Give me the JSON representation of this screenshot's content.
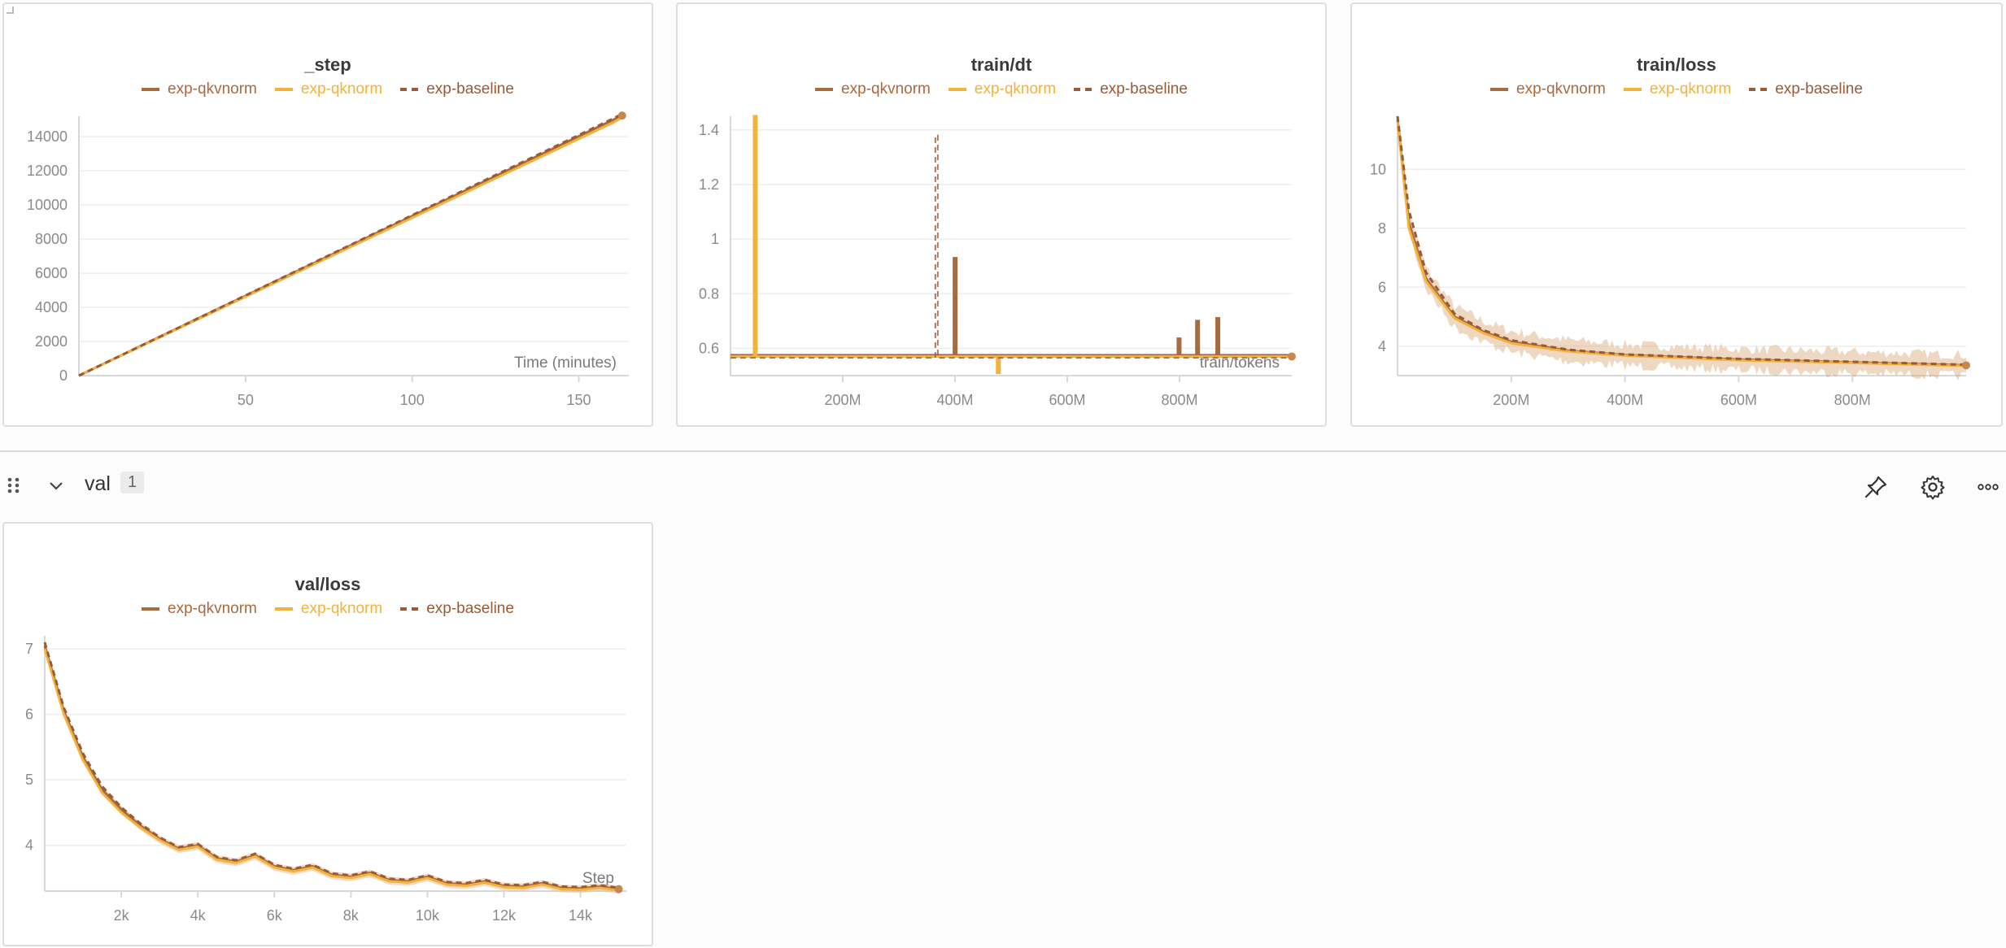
{
  "legend": [
    {
      "name": "exp-qkvnorm",
      "color": "#a86a3f",
      "dash": false
    },
    {
      "name": "exp-qknorm",
      "color": "#f2b23c",
      "dash": false
    },
    {
      "name": "exp-baseline",
      "color": "#9a5a34",
      "dash": true
    }
  ],
  "section": {
    "title": "val",
    "count": "1"
  },
  "icons": [
    "drag-handle-icon",
    "chevron-down-icon",
    "pin-icon",
    "gear-icon",
    "more-icon"
  ],
  "chart_data": [
    {
      "type": "line",
      "title": "_step",
      "xlabel": "Time (minutes)",
      "ylabel": "",
      "xlim": [
        0,
        165
      ],
      "ylim": [
        0,
        15200
      ],
      "xticks": [
        50,
        100,
        150
      ],
      "xtick_labels": [
        "50",
        "100",
        "150"
      ],
      "yticks": [
        0,
        2000,
        4000,
        6000,
        8000,
        10000,
        12000,
        14000
      ],
      "ytick_labels": [
        "0",
        "2000",
        "4000",
        "6000",
        "8000",
        "10000",
        "12000",
        "14000"
      ],
      "grid": true,
      "legend_position": "top-center",
      "series": [
        {
          "name": "exp-qkvnorm",
          "x": [
            0,
            20,
            40,
            60,
            80,
            100,
            120,
            140,
            160,
            163
          ],
          "y": [
            0,
            1870,
            3740,
            5610,
            7480,
            9350,
            11220,
            13090,
            14960,
            15240
          ]
        },
        {
          "name": "exp-qknorm",
          "x": [
            0,
            20,
            40,
            60,
            80,
            100,
            120,
            140,
            160,
            164
          ],
          "y": [
            0,
            1850,
            3700,
            5550,
            7400,
            9250,
            11100,
            12950,
            14800,
            15240
          ]
        },
        {
          "name": "exp-baseline",
          "x": [
            0,
            20,
            40,
            60,
            80,
            100,
            120,
            140,
            160,
            162
          ],
          "y": [
            0,
            1880,
            3760,
            5640,
            7520,
            9400,
            11280,
            13160,
            15040,
            15240
          ]
        }
      ]
    },
    {
      "type": "line",
      "title": "train/dt",
      "xlabel": "train/tokens",
      "ylabel": "",
      "xlim": [
        0,
        1000000000
      ],
      "ylim": [
        0.5,
        1.45
      ],
      "xticks": [
        200000000,
        400000000,
        600000000,
        800000000
      ],
      "xtick_labels": [
        "200M",
        "400M",
        "600M",
        "800M"
      ],
      "yticks": [
        0.6,
        0.8,
        1.0,
        1.2,
        1.4
      ],
      "ytick_labels": [
        "0.6",
        "0.8",
        "1",
        "1.2",
        "1.4"
      ],
      "grid": true,
      "legend_position": "top-center",
      "series": [
        {
          "name": "exp-qkvnorm",
          "baseline": 0.575,
          "spikes": [
            [
              42000000,
              1.15
            ],
            [
              398000000,
              0.93
            ],
            [
              797000000,
              0.635
            ],
            [
              830000000,
              0.7
            ],
            [
              866000000,
              0.71
            ]
          ]
        },
        {
          "name": "exp-qknorm",
          "baseline": 0.57,
          "spikes": [
            [
              42000000,
              1.45
            ],
            [
              475000000,
              0.51
            ]
          ]
        },
        {
          "name": "exp-baseline",
          "baseline": 0.565,
          "spikes": [
            [
              365000000,
              1.38
            ]
          ]
        }
      ]
    },
    {
      "type": "line",
      "title": "train/loss",
      "xlabel": "",
      "ylabel": "",
      "xlim": [
        0,
        1000000000
      ],
      "ylim": [
        3,
        11.8
      ],
      "xticks": [
        200000000,
        400000000,
        600000000,
        800000000
      ],
      "xtick_labels": [
        "200M",
        "400M",
        "600M",
        "800M"
      ],
      "yticks": [
        4,
        6,
        8,
        10
      ],
      "ytick_labels": [
        "4",
        "6",
        "8",
        "10"
      ],
      "grid": true,
      "legend_position": "top-center",
      "series": [
        {
          "name": "exp-qkvnorm",
          "x": [
            0,
            20000000,
            50000000,
            100000000,
            150000000,
            200000000,
            300000000,
            400000000,
            600000000,
            800000000,
            1000000000
          ],
          "y": [
            11.7,
            8.2,
            6.3,
            5.0,
            4.5,
            4.15,
            3.85,
            3.7,
            3.55,
            3.45,
            3.35
          ]
        },
        {
          "name": "exp-qknorm",
          "x": [
            0,
            20000000,
            50000000,
            100000000,
            150000000,
            200000000,
            300000000,
            400000000,
            600000000,
            800000000,
            1000000000
          ],
          "y": [
            11.6,
            8.0,
            6.2,
            4.95,
            4.45,
            4.1,
            3.82,
            3.68,
            3.52,
            3.43,
            3.33
          ]
        },
        {
          "name": "exp-baseline",
          "x": [
            0,
            20000000,
            50000000,
            100000000,
            150000000,
            200000000,
            300000000,
            400000000,
            600000000,
            800000000,
            1000000000
          ],
          "y": [
            11.8,
            8.6,
            6.5,
            5.1,
            4.55,
            4.2,
            3.88,
            3.72,
            3.57,
            3.47,
            3.37
          ]
        }
      ]
    },
    {
      "type": "line",
      "title": "val/loss",
      "xlabel": "Step",
      "ylabel": "",
      "xlim": [
        0,
        15200
      ],
      "ylim": [
        3.3,
        7.2
      ],
      "xticks": [
        2000,
        4000,
        6000,
        8000,
        10000,
        12000,
        14000
      ],
      "xtick_labels": [
        "2k",
        "4k",
        "6k",
        "8k",
        "10k",
        "12k",
        "14k"
      ],
      "yticks": [
        4,
        5,
        6,
        7
      ],
      "ytick_labels": [
        "4",
        "5",
        "6",
        "7"
      ],
      "grid": true,
      "legend_position": "top-center",
      "series": [
        {
          "name": "exp-qkvnorm",
          "x": [
            0,
            500,
            1000,
            1500,
            2000,
            2500,
            3000,
            3500,
            4000,
            4500,
            5000,
            5500,
            6000,
            6500,
            7000,
            7500,
            8000,
            8500,
            9000,
            9500,
            10000,
            10500,
            11000,
            11500,
            12000,
            12500,
            13000,
            13500,
            14000,
            14500,
            15000
          ],
          "y": [
            7.05,
            6.05,
            5.35,
            4.85,
            4.55,
            4.3,
            4.1,
            3.95,
            4.0,
            3.8,
            3.75,
            3.85,
            3.68,
            3.62,
            3.68,
            3.55,
            3.52,
            3.58,
            3.47,
            3.45,
            3.52,
            3.42,
            3.4,
            3.45,
            3.38,
            3.37,
            3.42,
            3.35,
            3.34,
            3.37,
            3.33
          ]
        },
        {
          "name": "exp-qknorm",
          "x": [
            0,
            500,
            1000,
            1500,
            2000,
            2500,
            3000,
            3500,
            4000,
            4500,
            5000,
            5500,
            6000,
            6500,
            7000,
            7500,
            8000,
            8500,
            9000,
            9500,
            10000,
            10500,
            11000,
            11500,
            12000,
            12500,
            13000,
            13500,
            14000,
            14500,
            15000
          ],
          "y": [
            7.0,
            6.0,
            5.3,
            4.8,
            4.5,
            4.27,
            4.08,
            3.93,
            3.98,
            3.78,
            3.73,
            3.83,
            3.66,
            3.6,
            3.66,
            3.53,
            3.5,
            3.56,
            3.45,
            3.43,
            3.5,
            3.4,
            3.38,
            3.43,
            3.36,
            3.35,
            3.4,
            3.33,
            3.32,
            3.35,
            3.31
          ]
        },
        {
          "name": "exp-baseline",
          "x": [
            0,
            500,
            1000,
            1500,
            2000,
            2500,
            3000,
            3500,
            4000,
            4500,
            5000,
            5500,
            6000,
            6500,
            7000,
            7500,
            8000,
            8500,
            9000,
            9500,
            10000,
            10500,
            11000,
            11500,
            12000,
            12500,
            13000,
            13500,
            14000,
            14500,
            15000
          ],
          "y": [
            7.1,
            6.1,
            5.4,
            4.9,
            4.58,
            4.33,
            4.12,
            3.97,
            4.02,
            3.82,
            3.77,
            3.87,
            3.7,
            3.64,
            3.7,
            3.57,
            3.54,
            3.6,
            3.49,
            3.47,
            3.54,
            3.44,
            3.42,
            3.47,
            3.4,
            3.39,
            3.44,
            3.37,
            3.36,
            3.39,
            3.35
          ]
        }
      ]
    }
  ]
}
